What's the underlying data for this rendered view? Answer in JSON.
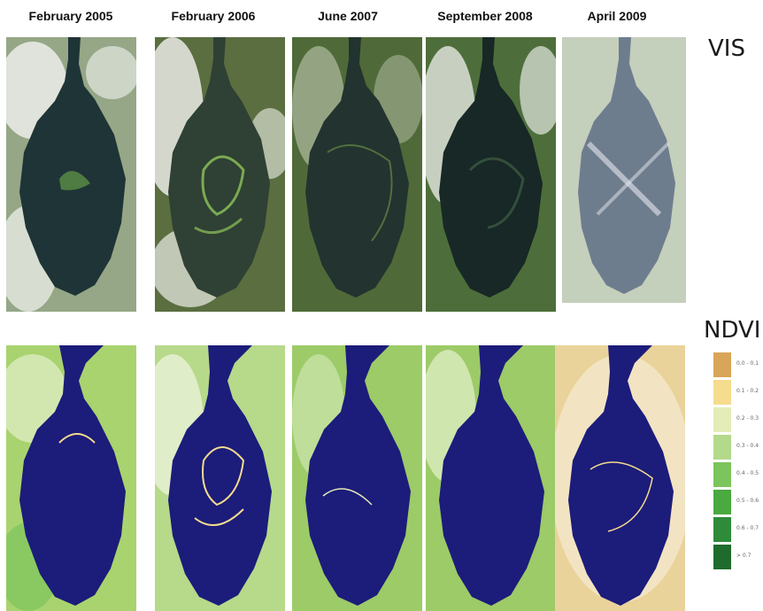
{
  "columns": [
    {
      "label": "February 2005"
    },
    {
      "label": "February 2006"
    },
    {
      "label": "June 2007"
    },
    {
      "label": "September 2008"
    },
    {
      "label": "April 2009"
    }
  ],
  "rows": {
    "vis": {
      "label": "VIS"
    },
    "ndvi": {
      "label": "NDVI"
    }
  },
  "legend": [
    {
      "label": "0.0 - 0.1",
      "color": "#d9a55a"
    },
    {
      "label": "0.1 - 0.2",
      "color": "#f5dc8e"
    },
    {
      "label": "0.2 - 0.3",
      "color": "#e4ecb8"
    },
    {
      "label": "0.3 - 0.4",
      "color": "#b3d98b"
    },
    {
      "label": "0.4 - 0.5",
      "color": "#7cc45c"
    },
    {
      "label": "0.5 - 0.6",
      "color": "#4aa93f"
    },
    {
      "label": "0.6 - 0.7",
      "color": "#2e8b3a"
    },
    {
      "label": "> 0.7",
      "color": "#1e6b2c"
    }
  ],
  "colors": {
    "lake_ndvi": "#1c1c7a",
    "vis_water": "#2a3a36",
    "vis_land": "#5f7a46",
    "ndvi_land": "#a9d36e"
  }
}
